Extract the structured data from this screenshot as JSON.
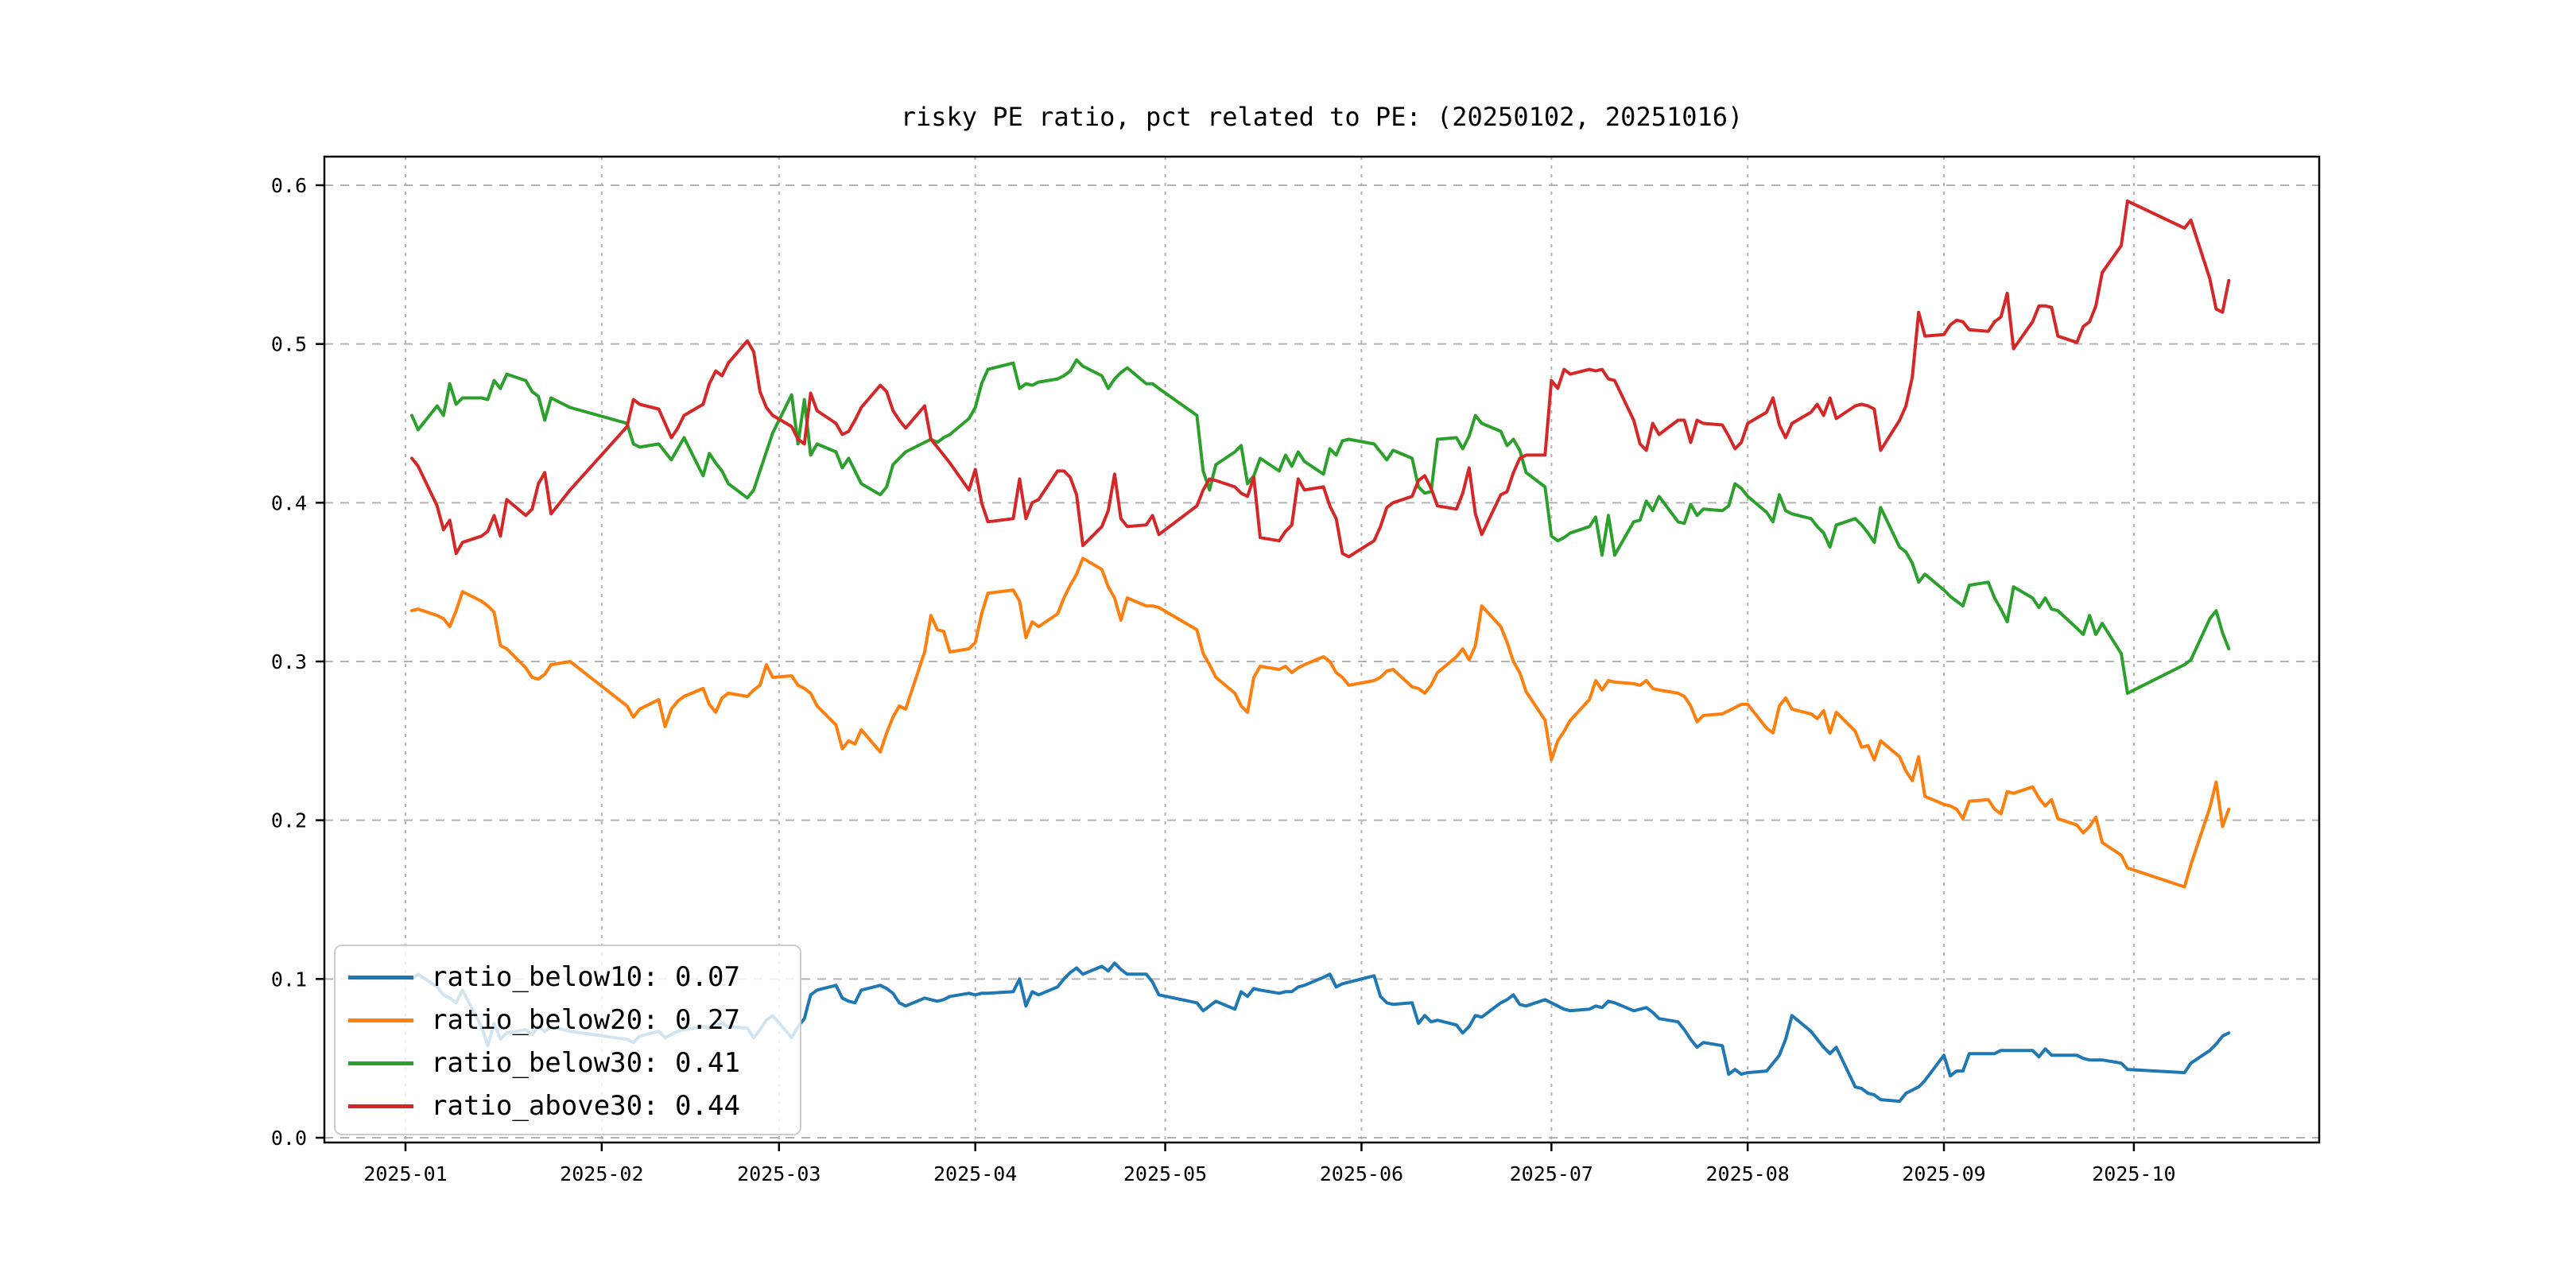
{
  "title": "risky PE ratio, pct related to PE: (20250102, 20251016)",
  "colors": {
    "below10": "#1f77b4",
    "below20": "#ff7f0e",
    "below30": "#2ca02c",
    "above30": "#d62728",
    "grid": "#b3b3b3",
    "spine": "#000000"
  },
  "legend": {
    "position": "lower left",
    "entries": [
      {
        "label": "ratio_below10: 0.07",
        "color": "#1f77b4"
      },
      {
        "label": "ratio_below20: 0.27",
        "color": "#ff7f0e"
      },
      {
        "label": "ratio_below30: 0.41",
        "color": "#2ca02c"
      },
      {
        "label": "ratio_above30: 0.44",
        "color": "#d62728"
      }
    ]
  },
  "chart_data": {
    "type": "line",
    "title": "risky PE ratio, pct related to PE: (20250102, 20251016)",
    "xlabel": "",
    "ylabel": "",
    "grid": "both-dashed",
    "legend_position": "lower left",
    "ylim": [
      -0.003,
      0.618
    ],
    "y_ticks": [
      0.0,
      0.1,
      0.2,
      0.3,
      0.4,
      0.5,
      0.6
    ],
    "y_tick_labels": [
      "0.0",
      "0.1",
      "0.2",
      "0.3",
      "0.4",
      "0.5",
      "0.6"
    ],
    "x_tick_dates": [
      "2025-01-01",
      "2025-02-01",
      "2025-03-01",
      "2025-04-01",
      "2025-05-01",
      "2025-06-01",
      "2025-07-01",
      "2025-08-01",
      "2025-09-01",
      "2025-10-01"
    ],
    "x_tick_labels": [
      "2025-01",
      "2025-02",
      "2025-03",
      "2025-04",
      "2025-05",
      "2025-06",
      "2025-07",
      "2025-08",
      "2025-09",
      "2025-10"
    ],
    "date_range": [
      "2025-01-02",
      "2025-10-16"
    ],
    "dates": [
      "2025-01-02",
      "2025-01-03",
      "2025-01-06",
      "2025-01-07",
      "2025-01-08",
      "2025-01-09",
      "2025-01-10",
      "2025-01-13",
      "2025-01-14",
      "2025-01-15",
      "2025-01-16",
      "2025-01-17",
      "2025-01-20",
      "2025-01-21",
      "2025-01-22",
      "2025-01-23",
      "2025-01-24",
      "2025-01-27",
      "2025-02-05",
      "2025-02-06",
      "2025-02-07",
      "2025-02-10",
      "2025-02-11",
      "2025-02-12",
      "2025-02-13",
      "2025-02-14",
      "2025-02-17",
      "2025-02-18",
      "2025-02-19",
      "2025-02-20",
      "2025-02-21",
      "2025-02-24",
      "2025-02-25",
      "2025-02-26",
      "2025-02-27",
      "2025-02-28",
      "2025-03-03",
      "2025-03-04",
      "2025-03-05",
      "2025-03-06",
      "2025-03-07",
      "2025-03-10",
      "2025-03-11",
      "2025-03-12",
      "2025-03-13",
      "2025-03-14",
      "2025-03-17",
      "2025-03-18",
      "2025-03-19",
      "2025-03-20",
      "2025-03-21",
      "2025-03-24",
      "2025-03-25",
      "2025-03-26",
      "2025-03-27",
      "2025-03-28",
      "2025-03-31",
      "2025-04-01",
      "2025-04-02",
      "2025-04-03",
      "2025-04-07",
      "2025-04-08",
      "2025-04-09",
      "2025-04-10",
      "2025-04-11",
      "2025-04-14",
      "2025-04-15",
      "2025-04-16",
      "2025-04-17",
      "2025-04-18",
      "2025-04-21",
      "2025-04-22",
      "2025-04-23",
      "2025-04-24",
      "2025-04-25",
      "2025-04-28",
      "2025-04-29",
      "2025-04-30",
      "2025-05-06",
      "2025-05-07",
      "2025-05-08",
      "2025-05-09",
      "2025-05-12",
      "2025-05-13",
      "2025-05-14",
      "2025-05-15",
      "2025-05-16",
      "2025-05-19",
      "2025-05-20",
      "2025-05-21",
      "2025-05-22",
      "2025-05-23",
      "2025-05-26",
      "2025-05-27",
      "2025-05-28",
      "2025-05-29",
      "2025-05-30",
      "2025-06-03",
      "2025-06-04",
      "2025-06-05",
      "2025-06-06",
      "2025-06-09",
      "2025-06-10",
      "2025-06-11",
      "2025-06-12",
      "2025-06-13",
      "2025-06-16",
      "2025-06-17",
      "2025-06-18",
      "2025-06-19",
      "2025-06-20",
      "2025-06-23",
      "2025-06-24",
      "2025-06-25",
      "2025-06-26",
      "2025-06-27",
      "2025-06-30",
      "2025-07-01",
      "2025-07-02",
      "2025-07-03",
      "2025-07-04",
      "2025-07-07",
      "2025-07-08",
      "2025-07-09",
      "2025-07-10",
      "2025-07-11",
      "2025-07-14",
      "2025-07-15",
      "2025-07-16",
      "2025-07-17",
      "2025-07-18",
      "2025-07-21",
      "2025-07-22",
      "2025-07-23",
      "2025-07-24",
      "2025-07-25",
      "2025-07-28",
      "2025-07-29",
      "2025-07-30",
      "2025-07-31",
      "2025-08-01",
      "2025-08-04",
      "2025-08-05",
      "2025-08-06",
      "2025-08-07",
      "2025-08-08",
      "2025-08-11",
      "2025-08-12",
      "2025-08-13",
      "2025-08-14",
      "2025-08-15",
      "2025-08-18",
      "2025-08-19",
      "2025-08-20",
      "2025-08-21",
      "2025-08-22",
      "2025-08-25",
      "2025-08-26",
      "2025-08-27",
      "2025-08-28",
      "2025-08-29",
      "2025-09-01",
      "2025-09-02",
      "2025-09-03",
      "2025-09-04",
      "2025-09-05",
      "2025-09-08",
      "2025-09-09",
      "2025-09-10",
      "2025-09-11",
      "2025-09-12",
      "2025-09-15",
      "2025-09-16",
      "2025-09-17",
      "2025-09-18",
      "2025-09-19",
      "2025-09-22",
      "2025-09-23",
      "2025-09-24",
      "2025-09-25",
      "2025-09-26",
      "2025-09-29",
      "2025-09-30",
      "2025-10-09",
      "2025-10-10",
      "2025-10-13",
      "2025-10-14",
      "2025-10-15",
      "2025-10-16"
    ],
    "series": [
      {
        "name": "ratio_below10",
        "color": "#1f77b4",
        "values": [
          0.1,
          0.103,
          0.095,
          0.09,
          0.088,
          0.085,
          0.093,
          0.07,
          0.058,
          0.072,
          0.062,
          0.066,
          0.068,
          0.065,
          0.07,
          0.067,
          0.07,
          0.067,
          0.062,
          0.06,
          0.064,
          0.067,
          0.063,
          0.065,
          0.067,
          0.068,
          0.07,
          0.069,
          0.071,
          0.072,
          0.07,
          0.069,
          0.063,
          0.068,
          0.074,
          0.077,
          0.063,
          0.07,
          0.075,
          0.09,
          0.093,
          0.096,
          0.088,
          0.086,
          0.085,
          0.093,
          0.096,
          0.094,
          0.091,
          0.085,
          0.083,
          0.088,
          0.087,
          0.086,
          0.087,
          0.089,
          0.091,
          0.09,
          0.091,
          0.091,
          0.092,
          0.1,
          0.083,
          0.092,
          0.09,
          0.095,
          0.1,
          0.104,
          0.107,
          0.103,
          0.108,
          0.105,
          0.11,
          0.106,
          0.103,
          0.103,
          0.098,
          0.09,
          0.085,
          0.08,
          0.083,
          0.086,
          0.081,
          0.092,
          0.089,
          0.094,
          0.093,
          0.091,
          0.092,
          0.092,
          0.095,
          0.096,
          0.101,
          0.103,
          0.095,
          0.097,
          0.098,
          0.102,
          0.089,
          0.085,
          0.084,
          0.085,
          0.072,
          0.077,
          0.073,
          0.074,
          0.071,
          0.066,
          0.07,
          0.077,
          0.076,
          0.085,
          0.087,
          0.09,
          0.084,
          0.083,
          0.087,
          0.085,
          0.083,
          0.081,
          0.08,
          0.081,
          0.083,
          0.082,
          0.086,
          0.085,
          0.08,
          0.081,
          0.082,
          0.079,
          0.075,
          0.073,
          0.068,
          0.062,
          0.057,
          0.06,
          0.058,
          0.04,
          0.043,
          0.04,
          0.041,
          0.042,
          0.047,
          0.052,
          0.062,
          0.077,
          0.067,
          0.062,
          0.057,
          0.053,
          0.057,
          0.032,
          0.031,
          0.028,
          0.027,
          0.024,
          0.023,
          0.028,
          0.03,
          0.032,
          0.036,
          0.052,
          0.039,
          0.042,
          0.042,
          0.053,
          0.053,
          0.053,
          0.055,
          0.055,
          0.055,
          0.055,
          0.051,
          0.056,
          0.052,
          0.052,
          0.052,
          0.05,
          0.049,
          0.049,
          0.049,
          0.047,
          0.043,
          0.041,
          0.047,
          0.055,
          0.059,
          0.064,
          0.066
        ]
      },
      {
        "name": "ratio_below20",
        "color": "#ff7f0e",
        "values": [
          0.332,
          0.333,
          0.329,
          0.327,
          0.322,
          0.332,
          0.344,
          0.338,
          0.335,
          0.331,
          0.31,
          0.308,
          0.296,
          0.29,
          0.289,
          0.292,
          0.298,
          0.3,
          0.272,
          0.265,
          0.27,
          0.276,
          0.259,
          0.27,
          0.275,
          0.278,
          0.283,
          0.273,
          0.268,
          0.277,
          0.28,
          0.278,
          0.282,
          0.285,
          0.298,
          0.29,
          0.291,
          0.285,
          0.283,
          0.28,
          0.272,
          0.26,
          0.245,
          0.25,
          0.248,
          0.257,
          0.243,
          0.255,
          0.265,
          0.272,
          0.27,
          0.306,
          0.329,
          0.32,
          0.319,
          0.306,
          0.308,
          0.312,
          0.33,
          0.343,
          0.345,
          0.338,
          0.315,
          0.325,
          0.322,
          0.33,
          0.34,
          0.348,
          0.355,
          0.365,
          0.358,
          0.347,
          0.34,
          0.326,
          0.34,
          0.335,
          0.335,
          0.334,
          0.32,
          0.305,
          0.298,
          0.29,
          0.28,
          0.272,
          0.268,
          0.29,
          0.297,
          0.295,
          0.297,
          0.293,
          0.296,
          0.298,
          0.303,
          0.3,
          0.293,
          0.29,
          0.285,
          0.288,
          0.29,
          0.294,
          0.295,
          0.284,
          0.283,
          0.28,
          0.285,
          0.293,
          0.303,
          0.308,
          0.301,
          0.31,
          0.335,
          0.322,
          0.312,
          0.3,
          0.293,
          0.281,
          0.263,
          0.238,
          0.25,
          0.256,
          0.263,
          0.276,
          0.288,
          0.282,
          0.288,
          0.287,
          0.286,
          0.285,
          0.288,
          0.283,
          0.282,
          0.28,
          0.278,
          0.272,
          0.262,
          0.266,
          0.267,
          0.269,
          0.271,
          0.273,
          0.273,
          0.258,
          0.255,
          0.272,
          0.277,
          0.27,
          0.267,
          0.264,
          0.269,
          0.255,
          0.268,
          0.256,
          0.246,
          0.247,
          0.238,
          0.25,
          0.24,
          0.231,
          0.225,
          0.24,
          0.215,
          0.21,
          0.209,
          0.207,
          0.201,
          0.212,
          0.213,
          0.207,
          0.204,
          0.218,
          0.217,
          0.221,
          0.214,
          0.209,
          0.213,
          0.201,
          0.197,
          0.192,
          0.196,
          0.202,
          0.186,
          0.178,
          0.17,
          0.158,
          0.172,
          0.208,
          0.224,
          0.196,
          0.207
        ]
      },
      {
        "name": "ratio_below30",
        "color": "#2ca02c",
        "values": [
          0.455,
          0.446,
          0.461,
          0.455,
          0.475,
          0.462,
          0.466,
          0.466,
          0.465,
          0.477,
          0.472,
          0.481,
          0.477,
          0.47,
          0.467,
          0.452,
          0.466,
          0.46,
          0.45,
          0.437,
          0.435,
          0.437,
          0.432,
          0.427,
          0.434,
          0.441,
          0.417,
          0.431,
          0.425,
          0.42,
          0.412,
          0.403,
          0.408,
          0.42,
          0.432,
          0.444,
          0.468,
          0.437,
          0.465,
          0.43,
          0.437,
          0.432,
          0.422,
          0.428,
          0.42,
          0.412,
          0.405,
          0.41,
          0.424,
          0.428,
          0.432,
          0.438,
          0.44,
          0.438,
          0.441,
          0.443,
          0.453,
          0.46,
          0.475,
          0.484,
          0.488,
          0.472,
          0.475,
          0.474,
          0.476,
          0.478,
          0.48,
          0.483,
          0.49,
          0.486,
          0.48,
          0.472,
          0.478,
          0.482,
          0.485,
          0.475,
          0.475,
          0.472,
          0.455,
          0.42,
          0.408,
          0.424,
          0.432,
          0.436,
          0.412,
          0.417,
          0.428,
          0.42,
          0.43,
          0.423,
          0.432,
          0.426,
          0.418,
          0.434,
          0.43,
          0.439,
          0.44,
          0.437,
          0.432,
          0.427,
          0.433,
          0.428,
          0.41,
          0.406,
          0.407,
          0.44,
          0.441,
          0.434,
          0.442,
          0.455,
          0.45,
          0.445,
          0.436,
          0.44,
          0.433,
          0.419,
          0.41,
          0.379,
          0.376,
          0.378,
          0.381,
          0.385,
          0.391,
          0.367,
          0.392,
          0.367,
          0.388,
          0.389,
          0.401,
          0.395,
          0.404,
          0.388,
          0.387,
          0.399,
          0.392,
          0.396,
          0.395,
          0.398,
          0.412,
          0.409,
          0.404,
          0.394,
          0.388,
          0.405,
          0.395,
          0.393,
          0.39,
          0.385,
          0.381,
          0.372,
          0.386,
          0.39,
          0.386,
          0.381,
          0.375,
          0.397,
          0.372,
          0.369,
          0.362,
          0.35,
          0.355,
          0.345,
          0.341,
          0.338,
          0.335,
          0.348,
          0.35,
          0.34,
          0.333,
          0.325,
          0.347,
          0.34,
          0.334,
          0.34,
          0.333,
          0.332,
          0.321,
          0.317,
          0.329,
          0.317,
          0.324,
          0.305,
          0.28,
          0.298,
          0.301,
          0.327,
          0.332,
          0.318,
          0.308
        ]
      },
      {
        "name": "ratio_above30",
        "color": "#d62728",
        "values": [
          0.428,
          0.423,
          0.398,
          0.383,
          0.389,
          0.368,
          0.375,
          0.379,
          0.382,
          0.392,
          0.379,
          0.402,
          0.392,
          0.396,
          0.412,
          0.419,
          0.393,
          0.408,
          0.448,
          0.465,
          0.462,
          0.459,
          0.45,
          0.441,
          0.447,
          0.455,
          0.462,
          0.475,
          0.483,
          0.48,
          0.488,
          0.502,
          0.495,
          0.47,
          0.46,
          0.455,
          0.448,
          0.44,
          0.437,
          0.469,
          0.458,
          0.45,
          0.443,
          0.445,
          0.452,
          0.46,
          0.474,
          0.47,
          0.458,
          0.452,
          0.447,
          0.461,
          0.44,
          0.435,
          0.43,
          0.425,
          0.408,
          0.421,
          0.4,
          0.388,
          0.39,
          0.415,
          0.39,
          0.4,
          0.402,
          0.42,
          0.42,
          0.416,
          0.405,
          0.373,
          0.385,
          0.395,
          0.418,
          0.39,
          0.385,
          0.386,
          0.392,
          0.38,
          0.398,
          0.408,
          0.415,
          0.414,
          0.41,
          0.406,
          0.404,
          0.416,
          0.378,
          0.376,
          0.382,
          0.386,
          0.415,
          0.408,
          0.41,
          0.398,
          0.39,
          0.368,
          0.366,
          0.376,
          0.385,
          0.397,
          0.4,
          0.404,
          0.414,
          0.417,
          0.409,
          0.398,
          0.396,
          0.406,
          0.422,
          0.393,
          0.38,
          0.405,
          0.407,
          0.419,
          0.428,
          0.43,
          0.43,
          0.477,
          0.472,
          0.484,
          0.481,
          0.484,
          0.483,
          0.484,
          0.478,
          0.477,
          0.452,
          0.437,
          0.433,
          0.45,
          0.443,
          0.452,
          0.452,
          0.438,
          0.452,
          0.45,
          0.449,
          0.442,
          0.434,
          0.438,
          0.45,
          0.457,
          0.466,
          0.449,
          0.441,
          0.45,
          0.457,
          0.462,
          0.455,
          0.466,
          0.453,
          0.461,
          0.462,
          0.461,
          0.459,
          0.433,
          0.452,
          0.461,
          0.479,
          0.52,
          0.505,
          0.506,
          0.512,
          0.515,
          0.514,
          0.509,
          0.508,
          0.514,
          0.517,
          0.532,
          0.497,
          0.514,
          0.524,
          0.524,
          0.523,
          0.505,
          0.501,
          0.511,
          0.514,
          0.524,
          0.545,
          0.562,
          0.59,
          0.573,
          0.578,
          0.541,
          0.522,
          0.52,
          0.54
        ]
      }
    ]
  }
}
